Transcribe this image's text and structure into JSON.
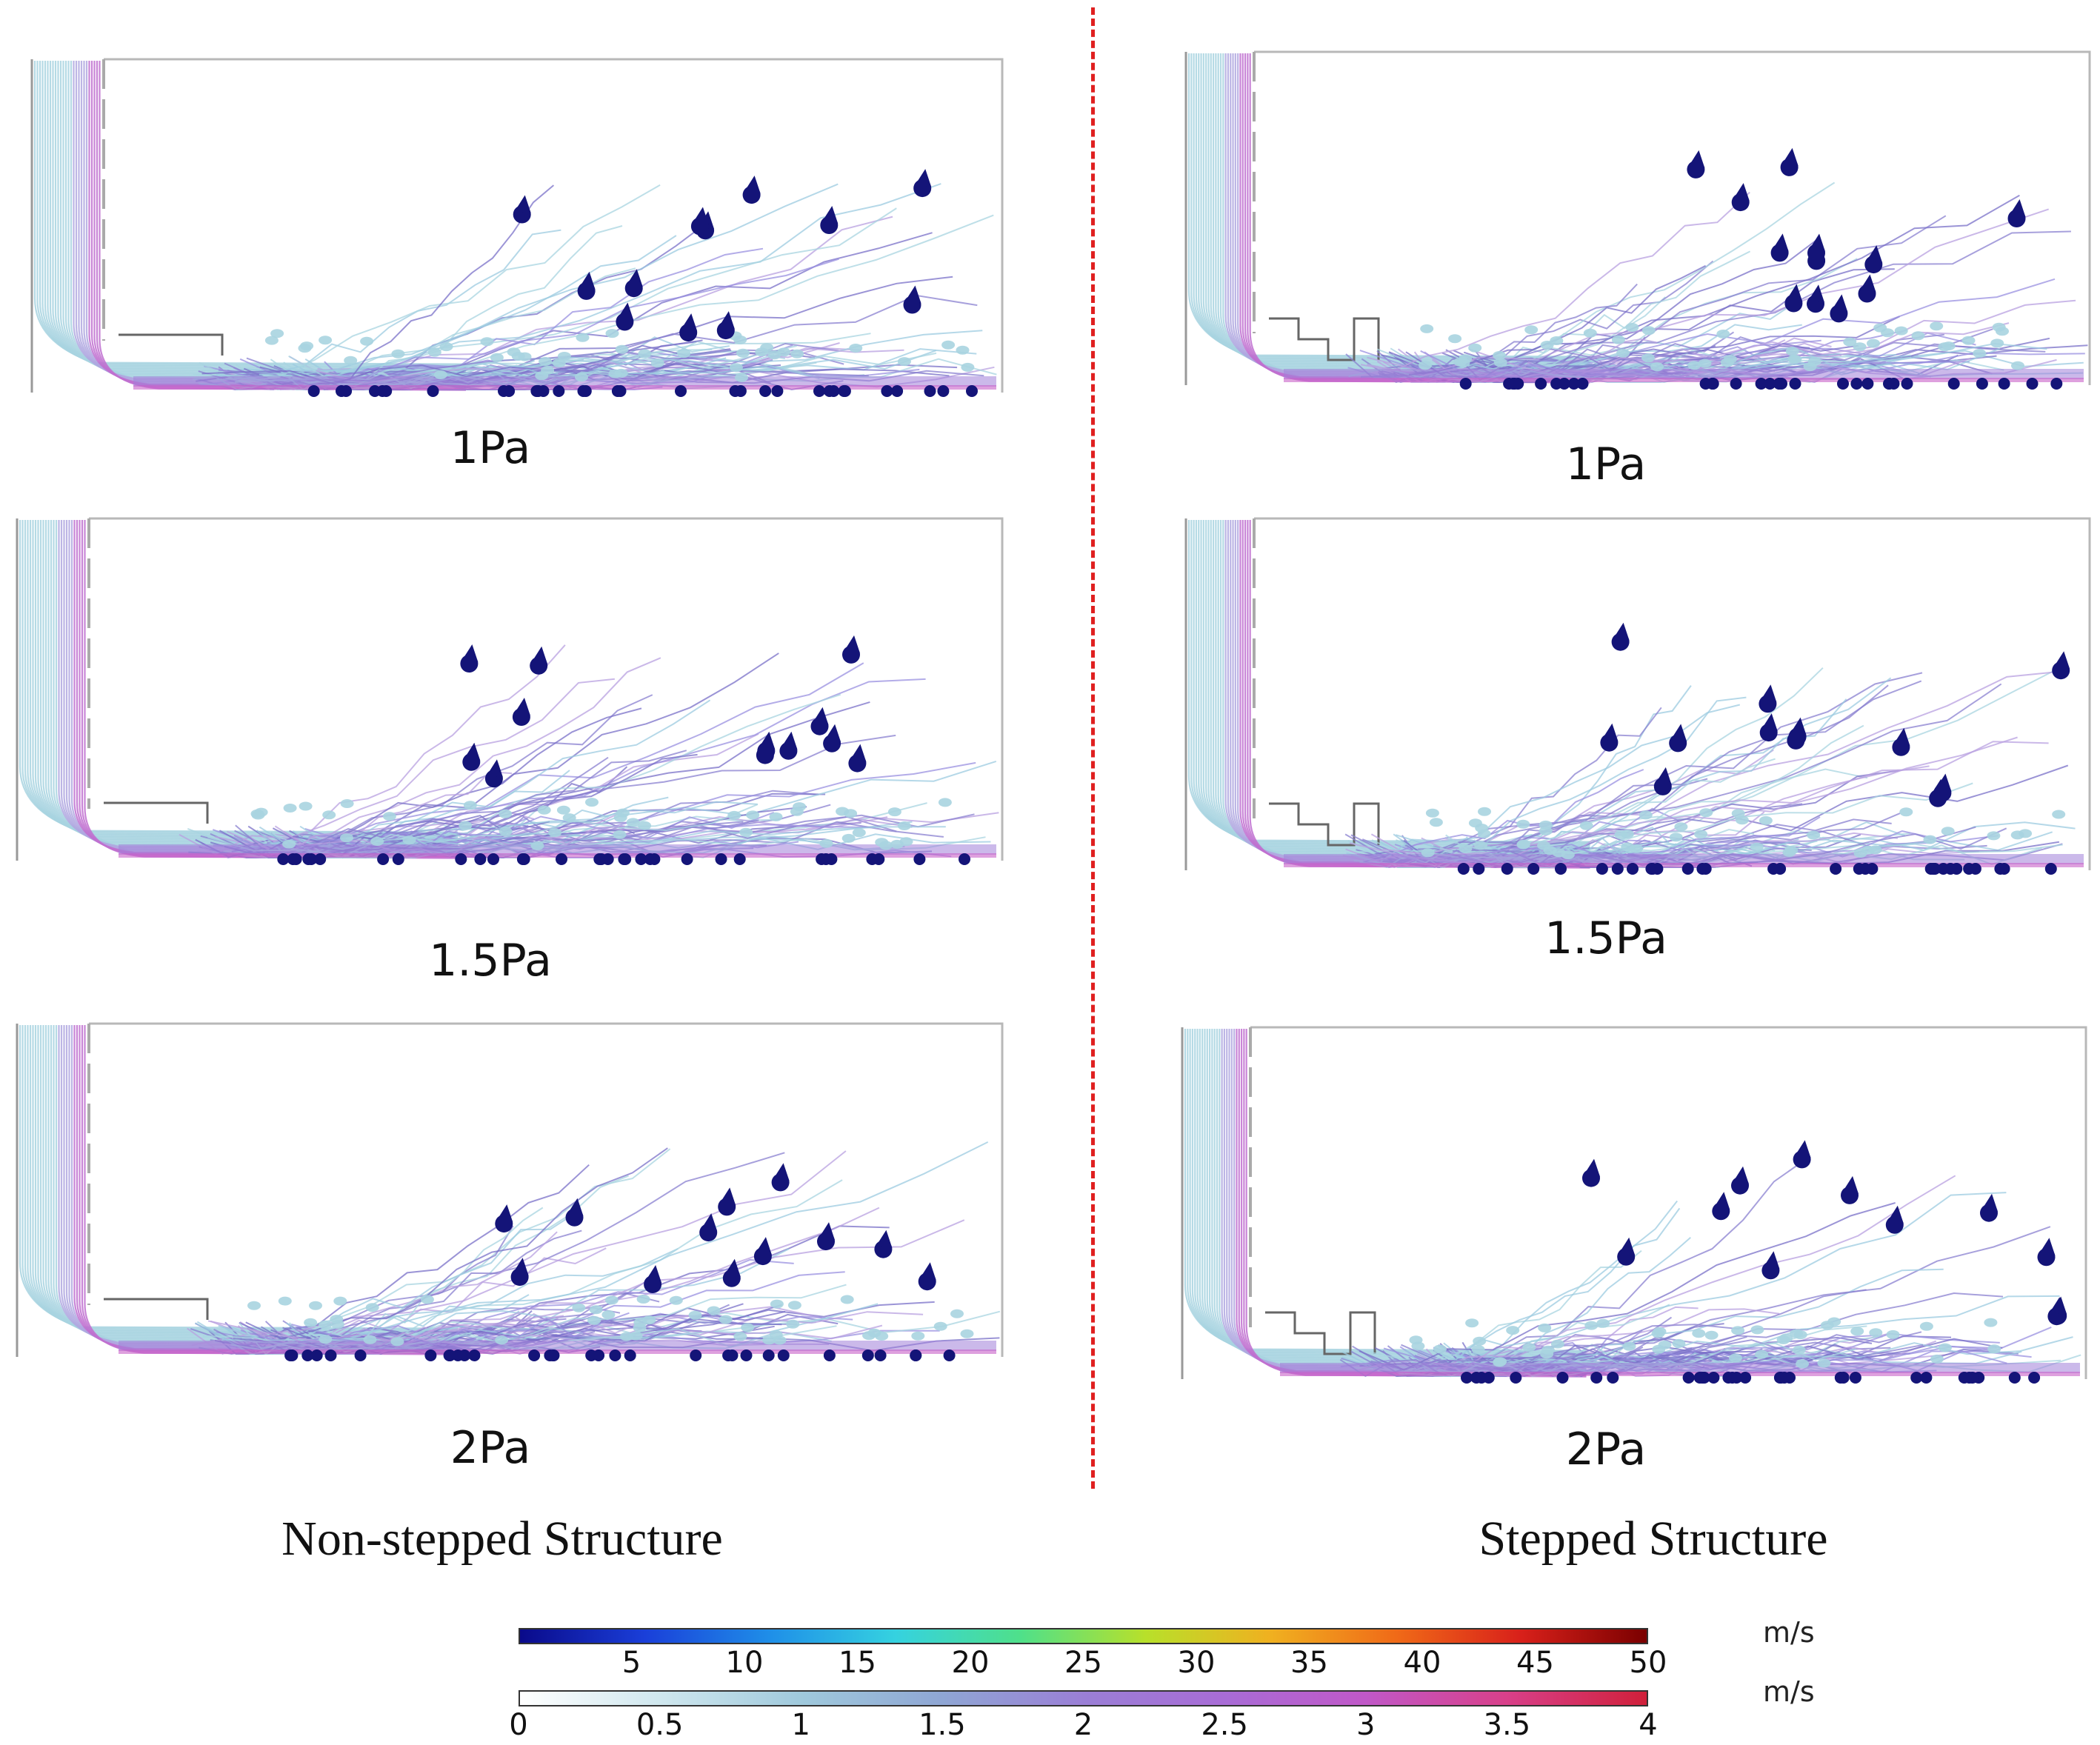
{
  "columns": [
    {
      "title": "Non-stepped Structure",
      "panels": [
        "1Pa",
        "1.5Pa",
        "2Pa"
      ]
    },
    {
      "title": "Stepped Structure",
      "panels": [
        "1Pa",
        "1.5Pa",
        "2Pa"
      ]
    }
  ],
  "colorbars": [
    {
      "unit": "m/s",
      "ticks": [
        "5",
        "10",
        "15",
        "20",
        "25",
        "30",
        "35",
        "40",
        "45",
        "50"
      ],
      "range": [
        0,
        50
      ],
      "colors": [
        "#0a0a8a",
        "#1a3fd9",
        "#1f8fe8",
        "#35d2e0",
        "#4fe08a",
        "#b8e02a",
        "#f0b020",
        "#f06a18",
        "#d8201a",
        "#7a0000"
      ]
    },
    {
      "unit": "m/s",
      "ticks": [
        "0",
        "0.5",
        "1",
        "1.5",
        "2",
        "2.5",
        "3",
        "3.5",
        "4"
      ],
      "range": [
        0,
        4
      ],
      "colors": [
        "#ffffff",
        "#cfe7ee",
        "#9fc9dc",
        "#8fa6d4",
        "#9a7fd6",
        "#a86cd6",
        "#c058c8",
        "#d8408a",
        "#d0203a"
      ]
    }
  ],
  "colors": {
    "divider": "#e02020",
    "particle": "#141478",
    "streamline_cold": "#a8d4e0",
    "streamline_mid": "#8a80d0",
    "wall": "#b8b8b8"
  }
}
